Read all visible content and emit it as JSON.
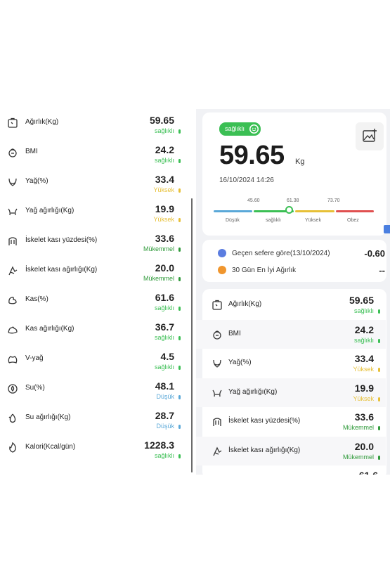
{
  "colors": {
    "saglikli": "#3bbf54",
    "yuksek": "#e7c037",
    "mukemmel": "#2f9a3a",
    "dusuk": "#5aa8d8"
  },
  "left_list": [
    {
      "icon": "scale-icon",
      "label": "Ağırlık(Kg)",
      "value": "59.65",
      "status": "sağlıklı",
      "tone": "saglikli"
    },
    {
      "icon": "bmi-icon",
      "label": "BMI",
      "value": "24.2",
      "status": "sağlıklı",
      "tone": "saglikli"
    },
    {
      "icon": "fat-icon",
      "label": "Yağ(%)",
      "value": "33.4",
      "status": "Yüksek",
      "tone": "yuksek"
    },
    {
      "icon": "fat-weight-icon",
      "label": "Yağ ağırlığı(Kg)",
      "value": "19.9",
      "status": "Yüksek",
      "tone": "yuksek"
    },
    {
      "icon": "skeletal-muscle-icon",
      "label": "İskelet kası yüzdesi(%)",
      "value": "33.6",
      "status": "Mükemmel",
      "tone": "mukemmel"
    },
    {
      "icon": "skeletal-muscle-weight-icon",
      "label": "İskelet kası ağırlığı(Kg)",
      "value": "20.0",
      "status": "Mükemmel",
      "tone": "mukemmel"
    },
    {
      "icon": "muscle-icon",
      "label": "Kas(%)",
      "value": "61.6",
      "status": "sağlıklı",
      "tone": "saglikli"
    },
    {
      "icon": "muscle-weight-icon",
      "label": "Kas ağırlığı(Kg)",
      "value": "36.7",
      "status": "sağlıklı",
      "tone": "saglikli"
    },
    {
      "icon": "visceral-fat-icon",
      "label": "V-yağ",
      "value": "4.5",
      "status": "sağlıklı",
      "tone": "saglikli"
    },
    {
      "icon": "water-icon",
      "label": "Su(%)",
      "value": "48.1",
      "status": "Düşük",
      "tone": "dusuk"
    },
    {
      "icon": "water-weight-icon",
      "label": "Su ağırlığı(Kg)",
      "value": "28.7",
      "status": "Düşük",
      "tone": "dusuk"
    },
    {
      "icon": "calorie-icon",
      "label": "Kalori(Kcal/gün)",
      "value": "1228.3",
      "status": "sağlıklı",
      "tone": "saglikli"
    }
  ],
  "summary": {
    "badge": "sağlıklı",
    "weight": "59.65",
    "unit": "Kg",
    "datetime": "16/10/2024 14:26",
    "scale_numbers": [
      "45.60",
      "61.38",
      "73.70"
    ],
    "scale_labels": [
      "Düşük",
      "sağlıklı",
      "Yüksek",
      "Obez"
    ],
    "marker_value": 61.38
  },
  "compare": [
    {
      "icon": "compare-icon",
      "label": "Geçen sefere göre(13/10/2024)",
      "value": "-0.60"
    },
    {
      "icon": "flame-icon",
      "label": "30 Gün En İyi Ağırlık",
      "value": "--"
    }
  ],
  "right_list": [
    {
      "icon": "scale-icon",
      "label": "Ağırlık(Kg)",
      "value": "59.65",
      "status": "sağlıklı",
      "tone": "saglikli"
    },
    {
      "icon": "bmi-icon",
      "label": "BMI",
      "value": "24.2",
      "status": "sağlıklı",
      "tone": "saglikli"
    },
    {
      "icon": "fat-icon",
      "label": "Yağ(%)",
      "value": "33.4",
      "status": "Yüksek",
      "tone": "yuksek"
    },
    {
      "icon": "fat-weight-icon",
      "label": "Yağ ağırlığı(Kg)",
      "value": "19.9",
      "status": "Yüksek",
      "tone": "yuksek"
    },
    {
      "icon": "skeletal-muscle-icon",
      "label": "İskelet kası yüzdesi(%)",
      "value": "33.6",
      "status": "Mükemmel",
      "tone": "mukemmel"
    },
    {
      "icon": "skeletal-muscle-weight-icon",
      "label": "İskelet kası ağırlığı(Kg)",
      "value": "20.0",
      "status": "Mükemmel",
      "tone": "mukemmel"
    }
  ]
}
